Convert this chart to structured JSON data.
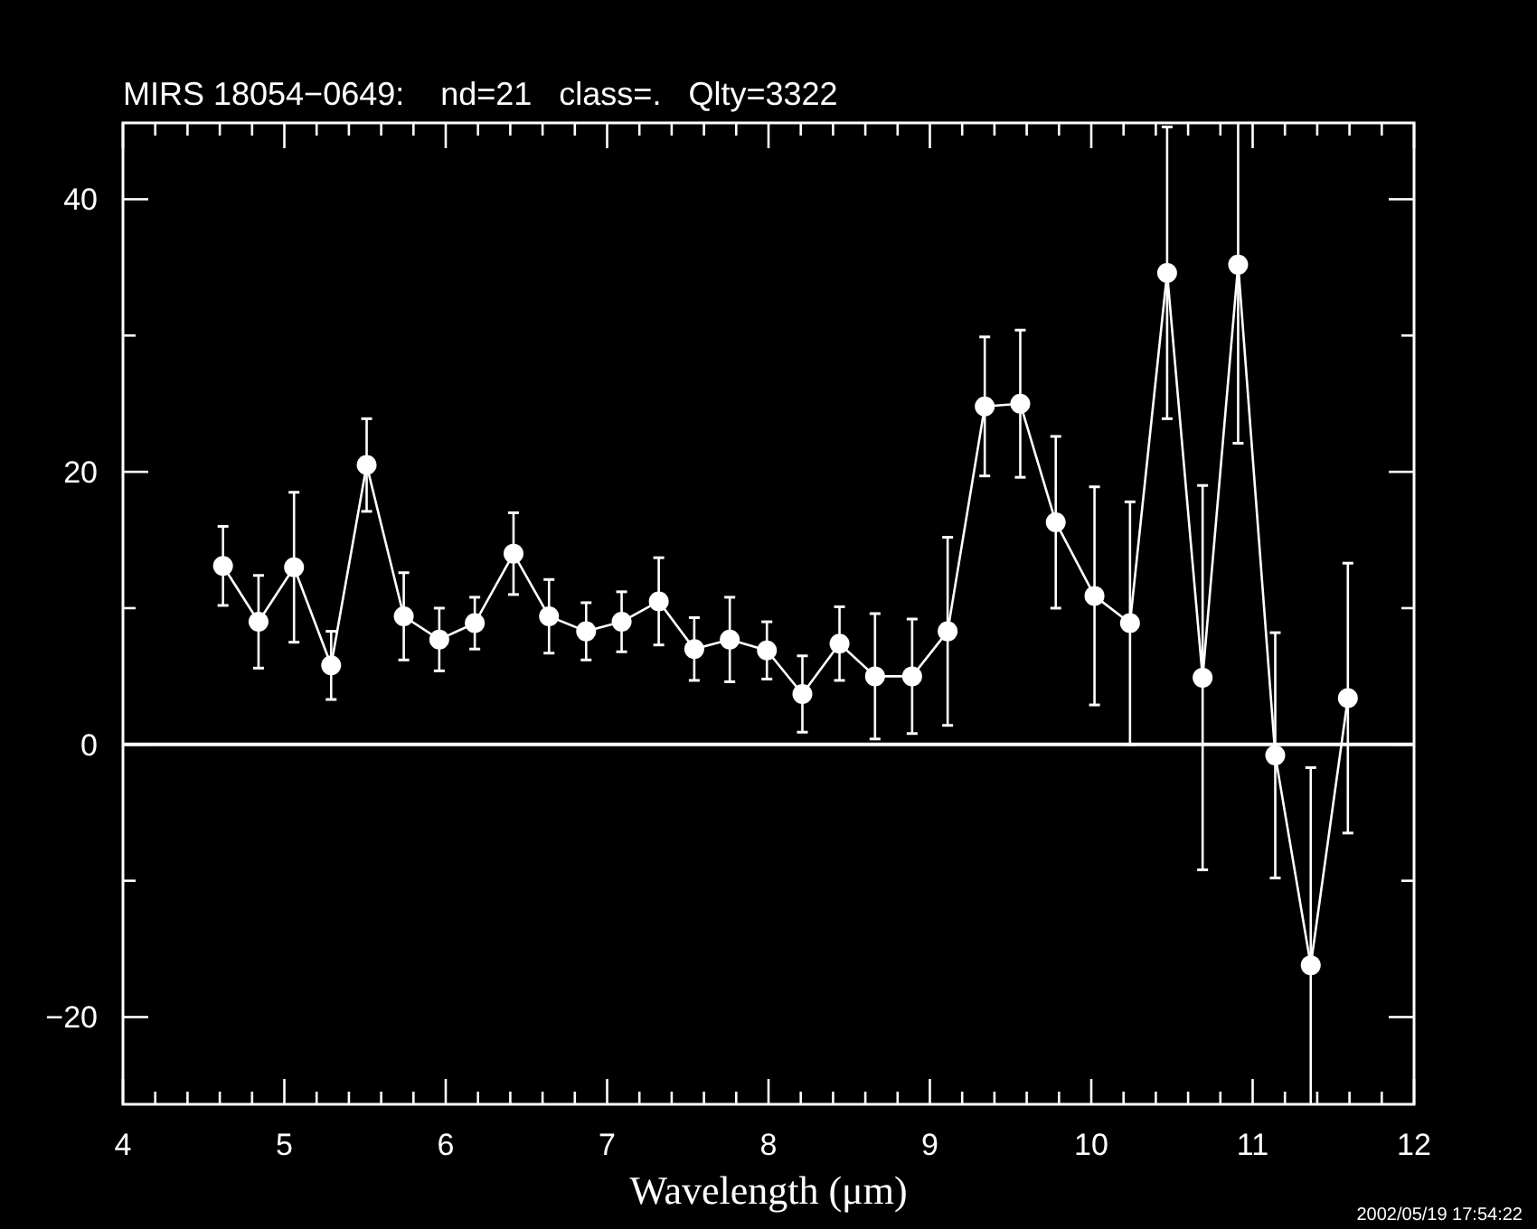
{
  "chart_data": {
    "type": "line",
    "title": "MIRS 18054−0649:    nd=21   class=.   Qlty=3322",
    "xlabel": "Wavelength (μm)",
    "annotations": [
      "2002/05/19 17:54:22"
    ],
    "x": [
      4.62,
      4.84,
      5.06,
      5.29,
      5.51,
      5.74,
      5.96,
      6.18,
      6.42,
      6.64,
      6.87,
      7.09,
      7.32,
      7.54,
      7.76,
      7.99,
      8.21,
      8.44,
      8.66,
      8.89,
      9.11,
      9.34,
      9.56,
      9.78,
      10.02,
      10.24,
      10.47,
      10.69,
      10.91,
      11.14,
      11.36,
      11.59
    ],
    "series": [
      {
        "color": "#ffffff",
        "values": [
          13.1,
          9.0,
          13.0,
          5.8,
          20.5,
          9.4,
          7.7,
          8.9,
          14.0,
          9.4,
          8.3,
          9.0,
          10.5,
          7.0,
          7.7,
          6.9,
          3.7,
          7.4,
          5.0,
          5.0,
          8.3,
          24.8,
          25.0,
          16.3,
          10.9,
          8.9,
          34.6,
          4.9,
          35.2,
          -0.8,
          -16.2,
          3.4
        ],
        "errors": [
          2.9,
          3.4,
          5.5,
          2.5,
          3.4,
          3.2,
          2.3,
          1.9,
          3.0,
          2.7,
          2.1,
          2.2,
          3.2,
          2.3,
          3.1,
          2.1,
          2.8,
          2.7,
          4.6,
          4.2,
          6.9,
          5.1,
          5.4,
          6.3,
          8.0,
          8.9,
          10.7,
          14.1,
          [
            22.1,
            45.6
          ],
          9.0,
          [
            -26.4,
            -1.7
          ],
          9.9
        ]
      }
    ],
    "xlim": [
      4,
      12
    ],
    "ylim": [
      -26.4,
      45.6
    ],
    "xticks": [
      4,
      {
        "value": 4.2,
        "label": null
      },
      {
        "value": 4.4,
        "label": null
      },
      {
        "value": 4.6,
        "label": null
      },
      {
        "value": 4.8,
        "label": null
      },
      5,
      {
        "value": 5.2,
        "label": null
      },
      {
        "value": 5.4,
        "label": null
      },
      {
        "value": 5.6,
        "label": null
      },
      {
        "value": 5.8,
        "label": null
      },
      6,
      {
        "value": 6.2,
        "label": null
      },
      {
        "value": 6.4,
        "label": null
      },
      {
        "value": 6.6,
        "label": null
      },
      {
        "value": 6.8,
        "label": null
      },
      7,
      {
        "value": 7.2,
        "label": null
      },
      {
        "value": 7.4,
        "label": null
      },
      {
        "value": 7.6,
        "label": null
      },
      {
        "value": 7.8,
        "label": null
      },
      8,
      {
        "value": 8.2,
        "label": null
      },
      {
        "value": 8.4,
        "label": null
      },
      {
        "value": 8.6,
        "label": null
      },
      {
        "value": 8.8,
        "label": null
      },
      9,
      {
        "value": 9.2,
        "label": null
      },
      {
        "value": 9.4,
        "label": null
      },
      {
        "value": 9.6,
        "label": null
      },
      {
        "value": 9.8,
        "label": null
      },
      10,
      {
        "value": 10.2,
        "label": null
      },
      {
        "value": 10.4,
        "label": null
      },
      {
        "value": 10.6,
        "label": null
      },
      {
        "value": 10.8,
        "label": null
      },
      11,
      {
        "value": 11.2,
        "label": null
      },
      {
        "value": 11.4,
        "label": null
      },
      {
        "value": 11.6,
        "label": null
      },
      {
        "value": 11.8,
        "label": null
      },
      12
    ],
    "yticks": [
      {
        "value": -20,
        "label": "−20"
      },
      {
        "value": -10,
        "label": null
      },
      0,
      {
        "value": 10,
        "label": null
      },
      20,
      {
        "value": 30,
        "label": null
      },
      40
    ],
    "ref_lines": [
      {
        "axis": "y",
        "value": 0,
        "color": "#ffffff"
      }
    ],
    "marker": "circle",
    "line_style": "solid"
  }
}
